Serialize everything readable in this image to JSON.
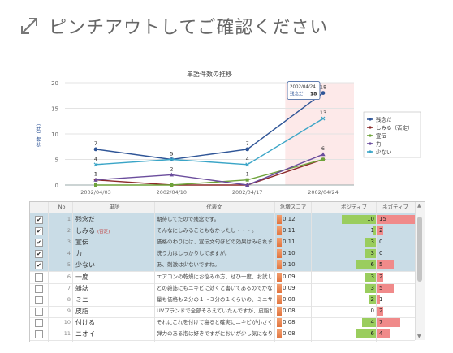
{
  "hint": {
    "text": "ピンチアウトしてご確認ください"
  },
  "chart_data": {
    "type": "line",
    "title": "単語件数の推移",
    "ylabel": "件数（件）",
    "xlabel": "",
    "categories": [
      "2002/04/03",
      "2002/04/10",
      "2002/04/17",
      "2002/04/24"
    ],
    "ylim": [
      0,
      20
    ],
    "yticks": [
      "0",
      "5",
      "10",
      "15",
      "20"
    ],
    "highlight": "2002/04/24",
    "series": [
      {
        "name": "残念だ",
        "color": "#2f5597",
        "marker": "circle",
        "values": [
          7,
          5,
          7,
          18
        ]
      },
      {
        "name": "しみる（否定）",
        "color": "#8b2a2a",
        "marker": "diamond",
        "values": [
          1,
          0,
          0,
          5
        ]
      },
      {
        "name": "宣伝",
        "color": "#6ea33a",
        "marker": "square",
        "values": [
          0,
          0,
          1,
          5
        ]
      },
      {
        "name": "力",
        "color": "#6a4c9c",
        "marker": "triangle",
        "values": [
          1,
          2,
          0,
          6
        ]
      },
      {
        "name": "少ない",
        "color": "#3aa5c7",
        "marker": "cross",
        "values": [
          4,
          5,
          4,
          13
        ]
      }
    ],
    "labels": {
      "0": [
        "7",
        "5",
        "7",
        "18"
      ],
      "4": [
        "4",
        "5",
        "4",
        "13"
      ],
      "3": [
        "1",
        "2",
        "",
        "6"
      ],
      "1": [
        "1",
        "",
        "",
        ""
      ],
      "2": [
        "",
        "",
        "1",
        ""
      ]
    },
    "tooltip": {
      "date": "2002/04/24",
      "series": "残念だ:",
      "value": "18"
    },
    "legend_position": "right"
  },
  "table": {
    "headers": {
      "no": "No",
      "word": "単語",
      "rep": "代表文",
      "score": "急増スコア",
      "pos": "ポジティブ",
      "neg": "ネガティブ"
    },
    "rows": [
      {
        "checked": true,
        "no": "1",
        "word": "残念だ",
        "tag": "",
        "rep": "期待してたので残念です。",
        "score": "0.12",
        "pos": 10,
        "neg": 15
      },
      {
        "checked": true,
        "no": "2",
        "word": "しみる",
        "tag": "(否定)",
        "rep": "そんなにしみることもなかったし・・・。",
        "score": "0.11",
        "pos": 1,
        "neg": 2
      },
      {
        "checked": true,
        "no": "3",
        "word": "宣伝",
        "tag": "",
        "rep": "価格のわりには、宣伝文句ほどの効果はみられませ...",
        "score": "0.11",
        "pos": 3,
        "neg": 0
      },
      {
        "checked": true,
        "no": "4",
        "word": "力",
        "tag": "",
        "rep": "洗う力はしっかりしてますが。",
        "score": "0.10",
        "pos": 3,
        "neg": 0
      },
      {
        "checked": true,
        "no": "5",
        "word": "少ない",
        "tag": "",
        "rep": "あ、刺激は少ないですね。",
        "score": "0.10",
        "pos": 6,
        "neg": 5
      },
      {
        "checked": false,
        "no": "6",
        "word": "一度",
        "tag": "",
        "rep": "エアコンの乾燥にお悩みの方、ぜひ一度、お試しあ...",
        "score": "0.09",
        "pos": 3,
        "neg": 2
      },
      {
        "checked": false,
        "no": "7",
        "word": "雑誌",
        "tag": "",
        "rep": "どの雑誌にもニキビに効くと書いてあるのでかなり...",
        "score": "0.09",
        "pos": 3,
        "neg": 5
      },
      {
        "checked": false,
        "no": "8",
        "word": "ミニ",
        "tag": "",
        "rep": "量も価格も２分の１～３分の１くらいの、ミニサイ...",
        "score": "0.08",
        "pos": 2,
        "neg": 1
      },
      {
        "checked": false,
        "no": "9",
        "word": "皮脂",
        "tag": "",
        "rep": "UVブランドで全部そろえていたんですが、皮脂が...",
        "score": "0.08",
        "pos": 0,
        "neg": 2
      },
      {
        "checked": false,
        "no": "10",
        "word": "付ける",
        "tag": "",
        "rep": "それにこれを付けて寝ると確実にニキビが小さくな...",
        "score": "0.08",
        "pos": 4,
        "neg": 7
      },
      {
        "checked": false,
        "no": "11",
        "word": "ニオイ",
        "tag": "",
        "rep": "弾力のある泡は好きですがにおいが少し気になりま...",
        "score": "0.08",
        "pos": 6,
        "neg": 4
      }
    ]
  }
}
